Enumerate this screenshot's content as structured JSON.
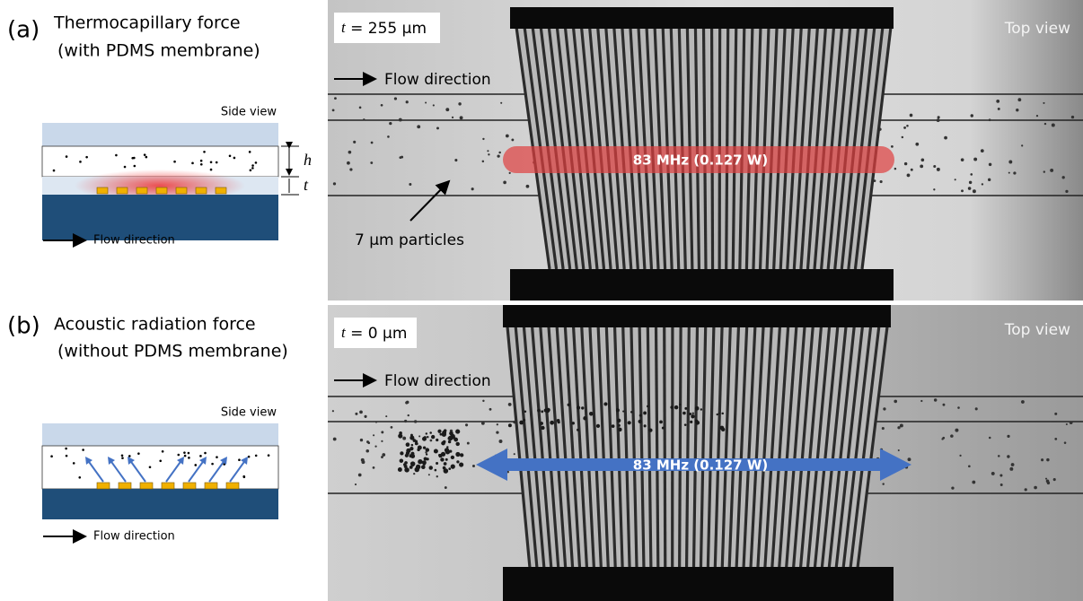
{
  "panels": [
    {
      "label": "(a)",
      "title": [
        "Thermocapillary force",
        "(with PDMS membrane)"
      ],
      "side_view": "Side view",
      "height_symbol": "h",
      "thickness_symbol": "t",
      "flow_direction": "Flow direction",
      "photo": {
        "thickness_symbol": "t",
        "thickness_value": "= 255 μm",
        "view": "Top view",
        "flow_direction": "Flow direction",
        "signal": "83 MHz (0.127 W)",
        "particles": "7 μm particles"
      }
    },
    {
      "label": "(b)",
      "title": [
        "Acoustic radiation force",
        "(without PDMS membrane)"
      ],
      "side_view": "Side view",
      "flow_direction": "Flow direction",
      "photo": {
        "thickness_symbol": "t",
        "thickness_value": "= 0 μm",
        "view": "Top view",
        "flow_direction": "Flow direction",
        "signal": "83 MHz (0.127 W)"
      }
    }
  ]
}
